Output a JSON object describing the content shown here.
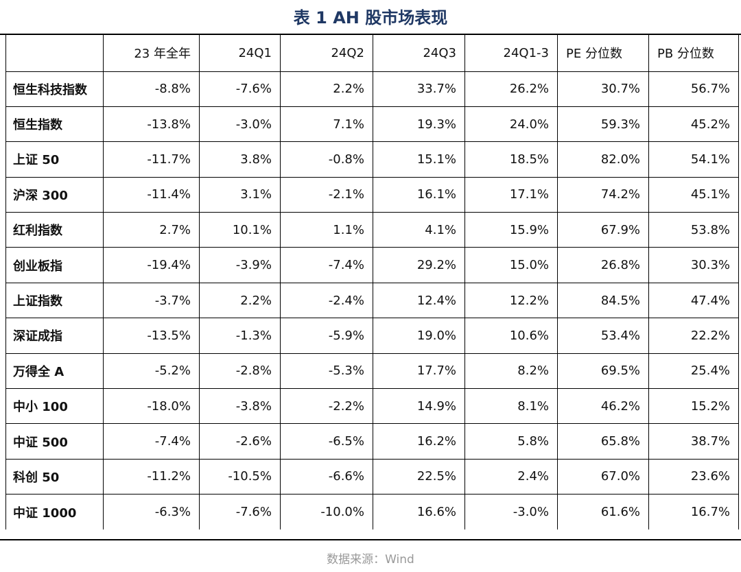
{
  "title": "表 1 AH 股市场表现",
  "table": {
    "header": [
      "23 年全年",
      "24Q1",
      "24Q2",
      "24Q3",
      "24Q1-3",
      "PE 分位数",
      "PB 分位数"
    ],
    "rows": [
      [
        "恒生科技指数",
        "-8.8%",
        "-7.6%",
        "2.2%",
        "33.7%",
        "26.2%",
        "30.7%",
        "56.7%"
      ],
      [
        "恒生指数",
        "-13.8%",
        "-3.0%",
        "7.1%",
        "19.3%",
        "24.0%",
        "59.3%",
        "45.2%"
      ],
      [
        "上证 50",
        "-11.7%",
        "3.8%",
        "-0.8%",
        "15.1%",
        "18.5%",
        "82.0%",
        "54.1%"
      ],
      [
        "沪深 300",
        "-11.4%",
        "3.1%",
        "-2.1%",
        "16.1%",
        "17.1%",
        "74.2%",
        "45.1%"
      ],
      [
        "红利指数",
        "2.7%",
        "10.1%",
        "1.1%",
        "4.1%",
        "15.9%",
        "67.9%",
        "53.8%"
      ],
      [
        "创业板指",
        "-19.4%",
        "-3.9%",
        "-7.4%",
        "29.2%",
        "15.0%",
        "26.8%",
        "30.3%"
      ],
      [
        "上证指数",
        "-3.7%",
        "2.2%",
        "-2.4%",
        "12.4%",
        "12.2%",
        "84.5%",
        "47.4%"
      ],
      [
        "深证成指",
        "-13.5%",
        "-1.3%",
        "-5.9%",
        "19.0%",
        "10.6%",
        "53.4%",
        "22.2%"
      ],
      [
        "万得全 A",
        "-5.2%",
        "-2.8%",
        "-5.3%",
        "17.7%",
        "8.2%",
        "69.5%",
        "25.4%"
      ],
      [
        "中小 100",
        "-18.0%",
        "-3.8%",
        "-2.2%",
        "14.9%",
        "8.1%",
        "46.2%",
        "15.2%"
      ],
      [
        "中证 500",
        "-7.4%",
        "-2.6%",
        "-6.5%",
        "16.2%",
        "5.8%",
        "65.8%",
        "38.7%"
      ],
      [
        "科创 50",
        "-11.2%",
        "-10.5%",
        "-6.6%",
        "22.5%",
        "2.4%",
        "67.0%",
        "23.6%"
      ],
      [
        "中证 1000",
        "-6.3%",
        "-7.6%",
        "-10.0%",
        "16.6%",
        "-3.0%",
        "61.6%",
        "16.7%"
      ]
    ]
  },
  "source": "数据来源：Wind"
}
